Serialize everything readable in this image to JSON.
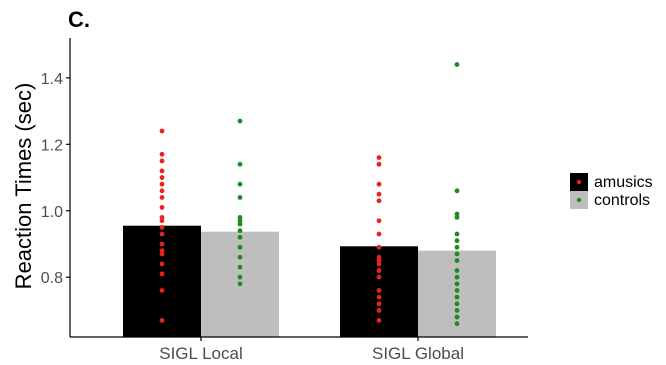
{
  "panel_label": "C.",
  "colors": {
    "amusics_bar": "#000000",
    "controls_bar": "#bebebe",
    "amusics_dot": "#e8221e",
    "controls_dot": "#1f8a1f",
    "axis": "#000000",
    "tick_text": "#4d4d4d"
  },
  "chart_data": {
    "type": "bar",
    "title": "",
    "xlabel": "",
    "ylabel": "Reaction Times (sec)",
    "ylim": [
      0.62,
      1.52
    ],
    "yticks": [
      0.8,
      1.0,
      1.2,
      1.4
    ],
    "ytick_labels": [
      "0.8",
      "1.0",
      "1.2",
      "1.4"
    ],
    "grid": false,
    "legend_position": "right",
    "categories": [
      "SIGL Local",
      "SIGL Global"
    ],
    "series": [
      {
        "name": "amusics",
        "values": [
          0.955,
          0.893
        ],
        "points": [
          [
            0.67,
            0.76,
            0.81,
            0.84,
            0.87,
            0.88,
            0.9,
            0.93,
            0.95,
            0.97,
            0.98,
            1.01,
            1.04,
            1.06,
            1.08,
            1.1,
            1.12,
            1.15,
            1.17,
            1.24
          ],
          [
            0.67,
            0.7,
            0.72,
            0.74,
            0.76,
            0.8,
            0.82,
            0.84,
            0.85,
            0.86,
            0.89,
            0.93,
            0.97,
            1.03,
            1.05,
            1.08,
            1.14,
            1.16
          ]
        ]
      },
      {
        "name": "controls",
        "values": [
          0.937,
          0.88
        ],
        "points": [
          [
            0.78,
            0.8,
            0.83,
            0.86,
            0.89,
            0.92,
            0.94,
            0.96,
            0.97,
            0.98,
            1.04,
            1.08,
            1.14,
            1.27
          ],
          [
            0.66,
            0.68,
            0.7,
            0.72,
            0.74,
            0.76,
            0.78,
            0.8,
            0.82,
            0.85,
            0.87,
            0.89,
            0.91,
            0.93,
            0.98,
            0.99,
            1.06,
            1.44
          ]
        ]
      }
    ]
  }
}
